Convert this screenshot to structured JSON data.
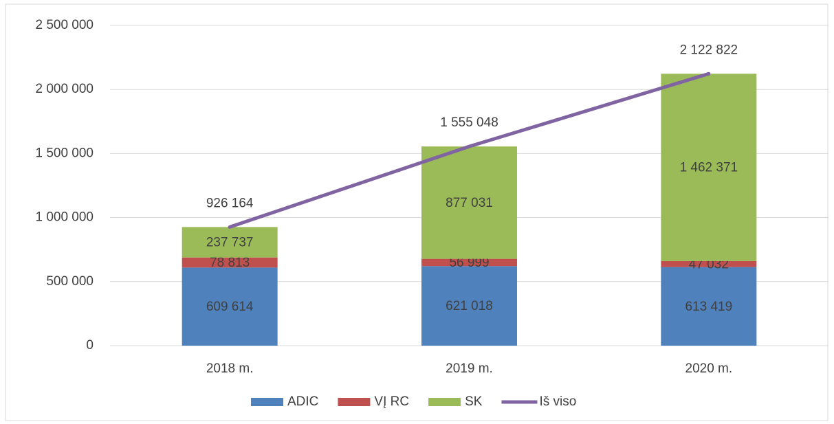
{
  "chart_data": {
    "type": "bar",
    "stacked": true,
    "categories": [
      "2018 m.",
      "2019 m.",
      "2020 m."
    ],
    "series": [
      {
        "name": "ADIC",
        "color": "#4f81bd",
        "values": [
          609614,
          621018,
          613419
        ],
        "value_labels": [
          "609 614",
          "621 018",
          "613 419"
        ]
      },
      {
        "name": "VĮ RC",
        "color": "#c0504d",
        "values": [
          78813,
          56999,
          47032
        ],
        "value_labels": [
          "78 813",
          "56 999",
          "47 032"
        ]
      },
      {
        "name": "SK",
        "color": "#9bbb59",
        "values": [
          237737,
          877031,
          1462371
        ],
        "value_labels": [
          "237 737",
          "877 031",
          "1 462 371"
        ]
      },
      {
        "name": "Iš viso",
        "type": "line",
        "color": "#8064a2",
        "values": [
          926164,
          1555048,
          2122822
        ],
        "value_labels": [
          "926 164",
          "1 555 048",
          "2 122 822"
        ]
      }
    ],
    "ylim": [
      0,
      2500000
    ],
    "yticks": [
      0,
      {
        "value": 500000,
        "label": "500 000"
      },
      {
        "value": 1000000,
        "label": "1 000 000"
      },
      {
        "value": 1500000,
        "label": "1 500 000"
      },
      {
        "value": 2000000,
        "label": "2 000 000"
      },
      {
        "value": 2500000,
        "label": "2 500 000"
      }
    ],
    "grid": true,
    "legend": "bottom"
  }
}
